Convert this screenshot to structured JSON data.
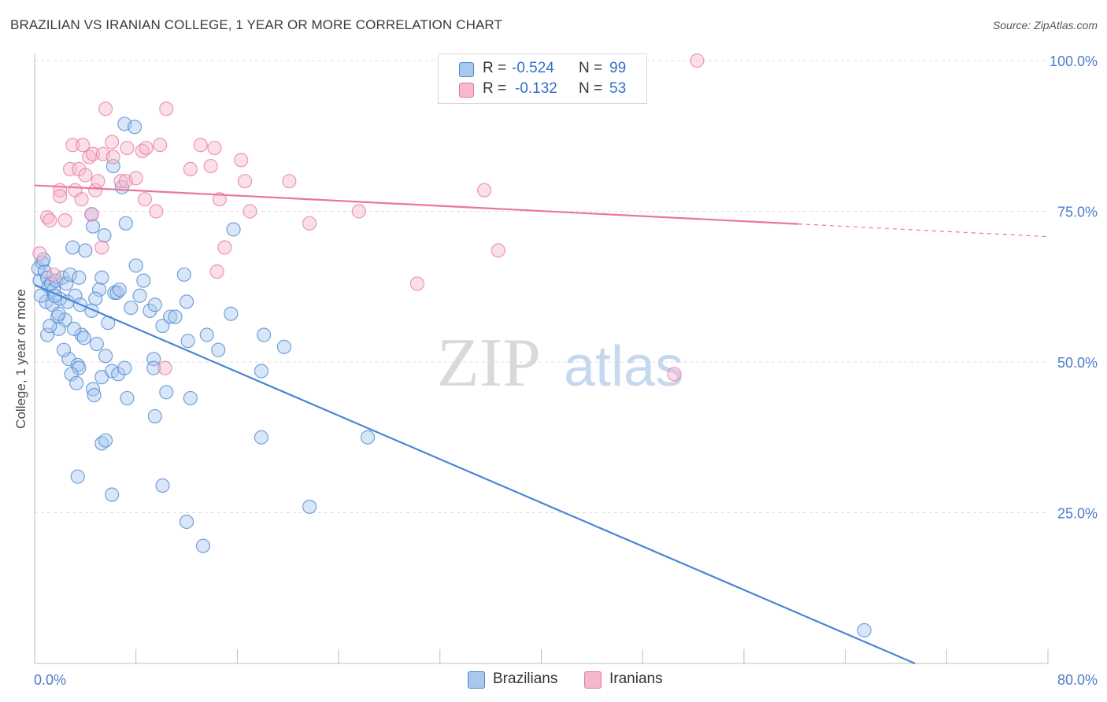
{
  "header": {
    "title": "BRAZILIAN VS IRANIAN COLLEGE, 1 YEAR OR MORE CORRELATION CHART",
    "source": "Source: ZipAtlas.com"
  },
  "watermark": {
    "zip": "ZIP",
    "atlas": "atlas"
  },
  "legend": {
    "rows": [
      {
        "r_label": "R =",
        "r_value": "-0.524",
        "n_label": "N =",
        "n_value": "99",
        "color": "#a9c8ee"
      },
      {
        "r_label": "R =",
        "r_value": "-0.132",
        "n_label": "N =",
        "n_value": "53",
        "color": "#f6b8cb"
      }
    ]
  },
  "chart_data": {
    "type": "scatter",
    "title": "BRAZILIAN VS IRANIAN COLLEGE, 1 YEAR OR MORE CORRELATION CHART",
    "ylabel": "College, 1 year or more",
    "xlabel": "",
    "xlim": [
      0,
      80
    ],
    "ylim": [
      0,
      100
    ],
    "x_tick_labels": [
      "0.0%",
      "80.0%"
    ],
    "y_tick_labels": [
      "25.0%",
      "50.0%",
      "75.0%",
      "100.0%"
    ],
    "y_ticks": [
      25,
      50,
      75,
      100
    ],
    "grid": "dashed horizontal",
    "legend_position": "bottom",
    "series": [
      {
        "name": "Brazilians",
        "color": "#4a86d4",
        "fill": "#a9c8ee",
        "trend": {
          "x": [
            0,
            69.5
          ],
          "y": [
            62.8,
            0
          ]
        },
        "points": [
          [
            0.3,
            65.5
          ],
          [
            0.4,
            63.5
          ],
          [
            0.6,
            66.5
          ],
          [
            0.8,
            65
          ],
          [
            1,
            64
          ],
          [
            1.1,
            62.5
          ],
          [
            1.3,
            63
          ],
          [
            0.9,
            60
          ],
          [
            1.5,
            62
          ],
          [
            1.7,
            63.5
          ],
          [
            1.4,
            59.5
          ],
          [
            2,
            60.5
          ],
          [
            2.2,
            64
          ],
          [
            1.8,
            57.5
          ],
          [
            2.5,
            63
          ],
          [
            2.6,
            60
          ],
          [
            2.4,
            57
          ],
          [
            1.9,
            55.5
          ],
          [
            2.8,
            64.5
          ],
          [
            3.2,
            61
          ],
          [
            3.5,
            64
          ],
          [
            3.6,
            59.5
          ],
          [
            3,
            69
          ],
          [
            4,
            68.5
          ],
          [
            4.5,
            74.5
          ],
          [
            4.6,
            72.5
          ],
          [
            5.5,
            71
          ],
          [
            5.3,
            64
          ],
          [
            5.1,
            62
          ],
          [
            4.8,
            60.5
          ],
          [
            4.5,
            58.5
          ],
          [
            3.7,
            54.5
          ],
          [
            3.9,
            54
          ],
          [
            4.9,
            53
          ],
          [
            5.6,
            51
          ],
          [
            2.7,
            50.5
          ],
          [
            3.4,
            49.5
          ],
          [
            3.5,
            49
          ],
          [
            4.6,
            45.5
          ],
          [
            4.7,
            44.5
          ],
          [
            5.3,
            47.5
          ],
          [
            6.1,
            48.5
          ],
          [
            6.6,
            48
          ],
          [
            7.1,
            49
          ],
          [
            7.3,
            44
          ],
          [
            6.3,
            61.5
          ],
          [
            6.5,
            61.5
          ],
          [
            6.7,
            62
          ],
          [
            7.6,
            59
          ],
          [
            8,
            66
          ],
          [
            8.3,
            61
          ],
          [
            8.6,
            63.5
          ],
          [
            9.1,
            58.5
          ],
          [
            9.5,
            59.5
          ],
          [
            10.1,
            56
          ],
          [
            10.7,
            57.5
          ],
          [
            11.1,
            57.5
          ],
          [
            12,
            60
          ],
          [
            11.8,
            64.5
          ],
          [
            12.1,
            53.5
          ],
          [
            13.6,
            54.5
          ],
          [
            14.5,
            52
          ],
          [
            15.5,
            58
          ],
          [
            15.7,
            72
          ],
          [
            17.9,
            48.5
          ],
          [
            18.1,
            54.5
          ],
          [
            19.7,
            52.5
          ],
          [
            9.4,
            50.5
          ],
          [
            9.4,
            49
          ],
          [
            10.4,
            45
          ],
          [
            12.3,
            44
          ],
          [
            9.5,
            41
          ],
          [
            7.1,
            89.5
          ],
          [
            7.9,
            89
          ],
          [
            6.2,
            82.5
          ],
          [
            6.9,
            79
          ],
          [
            7.2,
            73
          ],
          [
            3.4,
            31
          ],
          [
            5.3,
            36.5
          ],
          [
            5.6,
            37
          ],
          [
            6.1,
            28
          ],
          [
            10.1,
            29.5
          ],
          [
            12,
            23.5
          ],
          [
            13.3,
            19.5
          ],
          [
            17.9,
            37.5
          ],
          [
            26.3,
            37.5
          ],
          [
            21.7,
            26
          ],
          [
            65.5,
            5.5
          ],
          [
            1,
            54.5
          ],
          [
            1.2,
            56
          ],
          [
            1.6,
            61
          ],
          [
            1.9,
            58
          ],
          [
            2.3,
            52
          ],
          [
            2.9,
            48
          ],
          [
            3.3,
            46.5
          ],
          [
            0.7,
            67
          ],
          [
            0.5,
            61
          ],
          [
            5.8,
            56.5
          ],
          [
            3.1,
            55.5
          ]
        ]
      },
      {
        "name": "Iranians",
        "color": "#e8779c",
        "fill": "#f6b8cb",
        "trend": {
          "x": [
            0,
            80
          ],
          "y": [
            79.3,
            70.8
          ],
          "solid_until_x": 60.3
        },
        "points": [
          [
            1,
            74
          ],
          [
            1.2,
            73.5
          ],
          [
            2,
            78.5
          ],
          [
            2,
            77.5
          ],
          [
            2.8,
            82
          ],
          [
            3,
            86
          ],
          [
            3.2,
            78.5
          ],
          [
            3.5,
            82
          ],
          [
            3.8,
            86
          ],
          [
            4,
            81
          ],
          [
            4.3,
            84
          ],
          [
            4.6,
            84.5
          ],
          [
            4.5,
            74.5
          ],
          [
            4.8,
            78.5
          ],
          [
            5,
            80
          ],
          [
            5.3,
            69
          ],
          [
            5.4,
            84.5
          ],
          [
            5.6,
            92
          ],
          [
            6.1,
            86.5
          ],
          [
            6.2,
            84
          ],
          [
            6.8,
            80
          ],
          [
            7.2,
            80
          ],
          [
            7.3,
            85.5
          ],
          [
            8,
            80.5
          ],
          [
            8.5,
            85
          ],
          [
            8.8,
            85.5
          ],
          [
            8.7,
            77
          ],
          [
            9.6,
            75
          ],
          [
            9.9,
            86
          ],
          [
            10.4,
            92
          ],
          [
            12.3,
            82
          ],
          [
            13.1,
            86
          ],
          [
            13.9,
            82.5
          ],
          [
            14.2,
            85.5
          ],
          [
            14.6,
            77
          ],
          [
            14.4,
            65
          ],
          [
            15,
            69
          ],
          [
            16.3,
            83.5
          ],
          [
            16.6,
            80
          ],
          [
            17,
            75
          ],
          [
            20.1,
            80
          ],
          [
            21.7,
            73
          ],
          [
            25.6,
            75
          ],
          [
            30.2,
            63
          ],
          [
            35.5,
            78.5
          ],
          [
            36.6,
            68.5
          ],
          [
            50.5,
            48
          ],
          [
            52.3,
            100
          ],
          [
            10.3,
            49
          ],
          [
            1.5,
            64.5
          ],
          [
            2.4,
            73.5
          ],
          [
            3.7,
            77
          ],
          [
            0.4,
            68
          ]
        ]
      }
    ]
  }
}
